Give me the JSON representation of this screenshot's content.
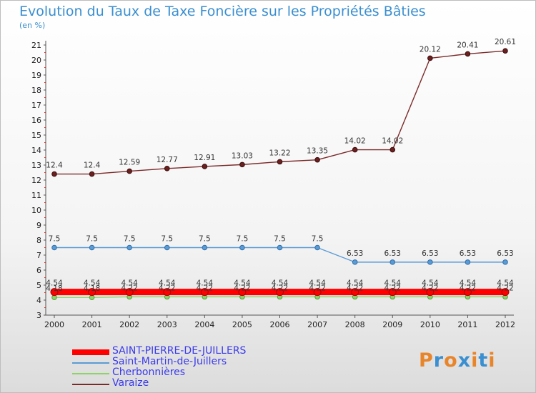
{
  "header": {
    "title": "Evolution du Taux de Taxe Foncière sur les Propriétés Bâties",
    "subtitle": "(en %)"
  },
  "logo": {
    "text": "Proxiti",
    "colors": [
      "#e8852a",
      "#3a8fd0",
      "#e8852a",
      "#3a8fd0",
      "#e8852a",
      "#3a8fd0",
      "#e8852a"
    ]
  },
  "chart_data": {
    "type": "line",
    "x": [
      "2000",
      "2001",
      "2002",
      "2003",
      "2004",
      "2005",
      "2006",
      "2007",
      "2008",
      "2009",
      "2010",
      "2011",
      "2012"
    ],
    "ylim": [
      3,
      21
    ],
    "yticks": [
      3,
      4,
      5,
      6,
      7,
      8,
      9,
      10,
      11,
      12,
      13,
      14,
      15,
      16,
      17,
      18,
      19,
      20,
      21
    ],
    "grid": false,
    "legend_position": "bottom-left",
    "series": [
      {
        "name": "SAINT-PIERRE-DE-JUILLERS",
        "color": "#ff0000",
        "values": [
          4.54,
          4.54,
          4.54,
          4.54,
          4.54,
          4.54,
          4.54,
          4.54,
          4.54,
          4.54,
          4.54,
          4.54,
          4.54
        ],
        "labels": [
          "4.54",
          "4.54",
          "4.54",
          "4.54",
          "4.54",
          "4.54",
          "4.54",
          "4.54",
          "4.54",
          "4.54",
          "4.54",
          "4.54",
          "4.54"
        ]
      },
      {
        "name": "Saint-Martin-de-Juillers",
        "color": "#5b9bd5",
        "values": [
          7.5,
          7.5,
          7.5,
          7.5,
          7.5,
          7.5,
          7.5,
          7.5,
          6.53,
          6.53,
          6.53,
          6.53,
          6.53
        ],
        "labels": [
          "7.5",
          "7.5",
          "7.5",
          "7.5",
          "7.5",
          "7.5",
          "7.5",
          "7.5",
          "6.53",
          "6.53",
          "6.53",
          "6.53",
          "6.53"
        ]
      },
      {
        "name": "Cherbonnières",
        "color": "#8fd16a",
        "values": [
          4.18,
          4.18,
          4.22,
          4.22,
          4.22,
          4.22,
          4.22,
          4.22,
          4.22,
          4.22,
          4.22,
          4.22,
          4.22
        ],
        "labels": [
          "4.18",
          "4.18",
          "4.22",
          "4.22",
          "4.22",
          "4.22",
          "4.22",
          "4.22",
          "4.22",
          "4.22",
          "4.22",
          "4.22",
          "4.22"
        ]
      },
      {
        "name": "Varaize",
        "color": "#7b2a2a",
        "values": [
          12.4,
          12.4,
          12.59,
          12.77,
          12.91,
          13.03,
          13.22,
          13.35,
          14.02,
          14.02,
          20.12,
          20.41,
          20.61
        ],
        "labels": [
          "12.4",
          "12.4",
          "12.59",
          "12.77",
          "12.91",
          "13.03",
          "13.22",
          "13.35",
          "14.02",
          "14.02",
          "20.12",
          "20.41",
          "20.61"
        ]
      }
    ]
  }
}
